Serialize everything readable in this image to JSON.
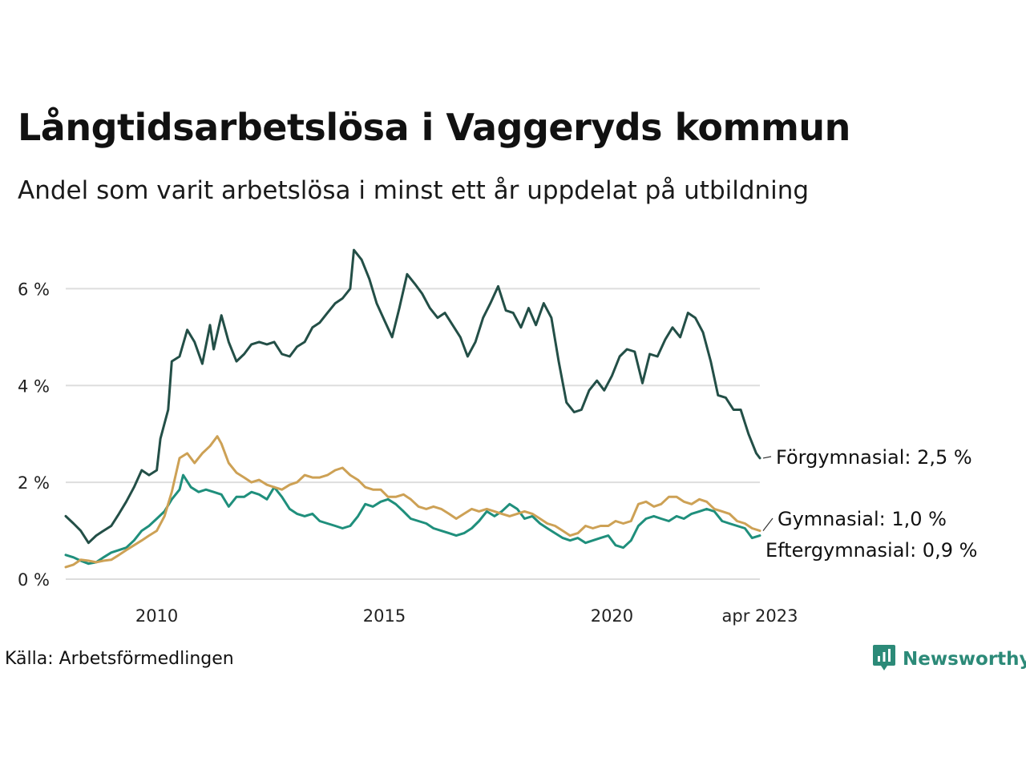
{
  "header": {
    "title": "Långtidsarbetslösa i Vaggeryds kommun",
    "subtitle": "Andel som varit arbetslösa i minst ett år uppdelat på utbildning"
  },
  "footer": {
    "source": "Källa: Arbetsförmedlingen",
    "brand": "Newsworthy"
  },
  "colors": {
    "forgymnasial": "#234f47",
    "gymnasial": "#cda155",
    "eftergymnasial": "#1f8f7c",
    "grid": "#dddddd",
    "brand": "#2c8a78"
  },
  "icons": {
    "brand_logo": "newsworthy-chart-icon"
  },
  "chart_data": {
    "type": "line",
    "x_axis": {
      "ticks": [
        2010,
        2015,
        2020
      ],
      "tick_labels": [
        "2010",
        "2015",
        "2020"
      ],
      "end_label": "apr 2023",
      "range": [
        2008.0,
        2023.25
      ]
    },
    "y_axis": {
      "ticks": [
        0,
        2,
        4,
        6
      ],
      "tick_labels": [
        "0 %",
        "2 %",
        "4 %",
        "6 %"
      ],
      "range": [
        0,
        7
      ],
      "unit": "%"
    },
    "grid": true,
    "legend": "direct-labels-right",
    "series": [
      {
        "name": "Förgymnasial",
        "end_label": "Förgymnasial: 2,5 %",
        "color": "#234f47",
        "points": [
          [
            2008.0,
            1.3
          ],
          [
            2008.17,
            1.15
          ],
          [
            2008.33,
            1.0
          ],
          [
            2008.5,
            0.75
          ],
          [
            2008.67,
            0.9
          ],
          [
            2008.83,
            1.0
          ],
          [
            2009.0,
            1.1
          ],
          [
            2009.17,
            1.35
          ],
          [
            2009.33,
            1.6
          ],
          [
            2009.5,
            1.9
          ],
          [
            2009.67,
            2.25
          ],
          [
            2009.83,
            2.15
          ],
          [
            2010.0,
            2.25
          ],
          [
            2010.08,
            2.9
          ],
          [
            2010.25,
            3.5
          ],
          [
            2010.33,
            4.5
          ],
          [
            2010.5,
            4.6
          ],
          [
            2010.67,
            5.15
          ],
          [
            2010.83,
            4.9
          ],
          [
            2011.0,
            4.45
          ],
          [
            2011.17,
            5.25
          ],
          [
            2011.25,
            4.75
          ],
          [
            2011.42,
            5.45
          ],
          [
            2011.58,
            4.9
          ],
          [
            2011.75,
            4.5
          ],
          [
            2011.92,
            4.65
          ],
          [
            2012.08,
            4.85
          ],
          [
            2012.25,
            4.9
          ],
          [
            2012.42,
            4.85
          ],
          [
            2012.58,
            4.9
          ],
          [
            2012.75,
            4.65
          ],
          [
            2012.92,
            4.6
          ],
          [
            2013.08,
            4.8
          ],
          [
            2013.25,
            4.9
          ],
          [
            2013.42,
            5.2
          ],
          [
            2013.58,
            5.3
          ],
          [
            2013.75,
            5.5
          ],
          [
            2013.92,
            5.7
          ],
          [
            2014.08,
            5.8
          ],
          [
            2014.25,
            6.0
          ],
          [
            2014.33,
            6.8
          ],
          [
            2014.5,
            6.6
          ],
          [
            2014.67,
            6.2
          ],
          [
            2014.83,
            5.7
          ],
          [
            2015.0,
            5.35
          ],
          [
            2015.17,
            5.0
          ],
          [
            2015.33,
            5.6
          ],
          [
            2015.5,
            6.3
          ],
          [
            2015.67,
            6.1
          ],
          [
            2015.83,
            5.9
          ],
          [
            2016.0,
            5.6
          ],
          [
            2016.17,
            5.4
          ],
          [
            2016.33,
            5.5
          ],
          [
            2016.5,
            5.25
          ],
          [
            2016.67,
            5.0
          ],
          [
            2016.83,
            4.6
          ],
          [
            2017.0,
            4.9
          ],
          [
            2017.17,
            5.4
          ],
          [
            2017.33,
            5.7
          ],
          [
            2017.5,
            6.05
          ],
          [
            2017.67,
            5.55
          ],
          [
            2017.83,
            5.5
          ],
          [
            2018.0,
            5.2
          ],
          [
            2018.17,
            5.6
          ],
          [
            2018.33,
            5.25
          ],
          [
            2018.5,
            5.7
          ],
          [
            2018.67,
            5.4
          ],
          [
            2018.83,
            4.5
          ],
          [
            2019.0,
            3.65
          ],
          [
            2019.17,
            3.45
          ],
          [
            2019.33,
            3.5
          ],
          [
            2019.5,
            3.9
          ],
          [
            2019.67,
            4.1
          ],
          [
            2019.83,
            3.9
          ],
          [
            2020.0,
            4.2
          ],
          [
            2020.17,
            4.6
          ],
          [
            2020.33,
            4.75
          ],
          [
            2020.5,
            4.7
          ],
          [
            2020.67,
            4.05
          ],
          [
            2020.83,
            4.65
          ],
          [
            2021.0,
            4.6
          ],
          [
            2021.17,
            4.95
          ],
          [
            2021.33,
            5.2
          ],
          [
            2021.5,
            5.0
          ],
          [
            2021.67,
            5.5
          ],
          [
            2021.83,
            5.4
          ],
          [
            2022.0,
            5.1
          ],
          [
            2022.17,
            4.5
          ],
          [
            2022.33,
            3.8
          ],
          [
            2022.5,
            3.75
          ],
          [
            2022.67,
            3.5
          ],
          [
            2022.83,
            3.5
          ],
          [
            2023.0,
            3.0
          ],
          [
            2023.17,
            2.6
          ],
          [
            2023.25,
            2.5
          ]
        ]
      },
      {
        "name": "Gymnasial",
        "end_label": "Gymnasial: 1,0 %",
        "color": "#cda155",
        "points": [
          [
            2008.0,
            0.25
          ],
          [
            2008.17,
            0.3
          ],
          [
            2008.33,
            0.4
          ],
          [
            2008.5,
            0.38
          ],
          [
            2008.67,
            0.35
          ],
          [
            2008.83,
            0.38
          ],
          [
            2009.0,
            0.4
          ],
          [
            2009.17,
            0.5
          ],
          [
            2009.33,
            0.6
          ],
          [
            2009.5,
            0.7
          ],
          [
            2009.67,
            0.8
          ],
          [
            2009.83,
            0.9
          ],
          [
            2010.0,
            1.0
          ],
          [
            2010.17,
            1.3
          ],
          [
            2010.33,
            1.8
          ],
          [
            2010.5,
            2.5
          ],
          [
            2010.67,
            2.6
          ],
          [
            2010.83,
            2.4
          ],
          [
            2011.0,
            2.6
          ],
          [
            2011.17,
            2.75
          ],
          [
            2011.33,
            2.95
          ],
          [
            2011.42,
            2.8
          ],
          [
            2011.58,
            2.4
          ],
          [
            2011.75,
            2.2
          ],
          [
            2011.92,
            2.1
          ],
          [
            2012.08,
            2.0
          ],
          [
            2012.25,
            2.05
          ],
          [
            2012.42,
            1.95
          ],
          [
            2012.58,
            1.9
          ],
          [
            2012.75,
            1.85
          ],
          [
            2012.92,
            1.95
          ],
          [
            2013.08,
            2.0
          ],
          [
            2013.25,
            2.15
          ],
          [
            2013.42,
            2.1
          ],
          [
            2013.58,
            2.1
          ],
          [
            2013.75,
            2.15
          ],
          [
            2013.92,
            2.25
          ],
          [
            2014.08,
            2.3
          ],
          [
            2014.25,
            2.15
          ],
          [
            2014.42,
            2.05
          ],
          [
            2014.58,
            1.9
          ],
          [
            2014.75,
            1.85
          ],
          [
            2014.92,
            1.85
          ],
          [
            2015.08,
            1.7
          ],
          [
            2015.25,
            1.7
          ],
          [
            2015.42,
            1.75
          ],
          [
            2015.58,
            1.65
          ],
          [
            2015.75,
            1.5
          ],
          [
            2015.92,
            1.45
          ],
          [
            2016.08,
            1.5
          ],
          [
            2016.25,
            1.45
          ],
          [
            2016.42,
            1.35
          ],
          [
            2016.58,
            1.25
          ],
          [
            2016.75,
            1.35
          ],
          [
            2016.92,
            1.45
          ],
          [
            2017.08,
            1.4
          ],
          [
            2017.25,
            1.45
          ],
          [
            2017.42,
            1.4
          ],
          [
            2017.58,
            1.35
          ],
          [
            2017.75,
            1.3
          ],
          [
            2017.92,
            1.35
          ],
          [
            2018.08,
            1.4
          ],
          [
            2018.25,
            1.35
          ],
          [
            2018.42,
            1.25
          ],
          [
            2018.58,
            1.15
          ],
          [
            2018.75,
            1.1
          ],
          [
            2018.92,
            1.0
          ],
          [
            2019.08,
            0.9
          ],
          [
            2019.25,
            0.95
          ],
          [
            2019.42,
            1.1
          ],
          [
            2019.58,
            1.05
          ],
          [
            2019.75,
            1.1
          ],
          [
            2019.92,
            1.1
          ],
          [
            2020.08,
            1.2
          ],
          [
            2020.25,
            1.15
          ],
          [
            2020.42,
            1.2
          ],
          [
            2020.58,
            1.55
          ],
          [
            2020.75,
            1.6
          ],
          [
            2020.92,
            1.5
          ],
          [
            2021.08,
            1.55
          ],
          [
            2021.25,
            1.7
          ],
          [
            2021.42,
            1.7
          ],
          [
            2021.58,
            1.6
          ],
          [
            2021.75,
            1.55
          ],
          [
            2021.92,
            1.65
          ],
          [
            2022.08,
            1.6
          ],
          [
            2022.25,
            1.45
          ],
          [
            2022.42,
            1.4
          ],
          [
            2022.58,
            1.35
          ],
          [
            2022.75,
            1.2
          ],
          [
            2022.92,
            1.15
          ],
          [
            2023.08,
            1.05
          ],
          [
            2023.25,
            1.0
          ]
        ]
      },
      {
        "name": "Eftergymnasial",
        "end_label": "Eftergymnasial: 0,9 %",
        "color": "#1f8f7c",
        "points": [
          [
            2008.0,
            0.5
          ],
          [
            2008.17,
            0.45
          ],
          [
            2008.33,
            0.38
          ],
          [
            2008.5,
            0.32
          ],
          [
            2008.67,
            0.35
          ],
          [
            2008.83,
            0.45
          ],
          [
            2009.0,
            0.55
          ],
          [
            2009.17,
            0.6
          ],
          [
            2009.33,
            0.65
          ],
          [
            2009.5,
            0.8
          ],
          [
            2009.67,
            1.0
          ],
          [
            2009.83,
            1.1
          ],
          [
            2010.0,
            1.25
          ],
          [
            2010.17,
            1.4
          ],
          [
            2010.33,
            1.65
          ],
          [
            2010.5,
            1.85
          ],
          [
            2010.58,
            2.15
          ],
          [
            2010.75,
            1.9
          ],
          [
            2010.92,
            1.8
          ],
          [
            2011.08,
            1.85
          ],
          [
            2011.25,
            1.8
          ],
          [
            2011.42,
            1.75
          ],
          [
            2011.58,
            1.5
          ],
          [
            2011.75,
            1.7
          ],
          [
            2011.92,
            1.7
          ],
          [
            2012.08,
            1.8
          ],
          [
            2012.25,
            1.75
          ],
          [
            2012.42,
            1.65
          ],
          [
            2012.58,
            1.9
          ],
          [
            2012.75,
            1.7
          ],
          [
            2012.92,
            1.45
          ],
          [
            2013.08,
            1.35
          ],
          [
            2013.25,
            1.3
          ],
          [
            2013.42,
            1.35
          ],
          [
            2013.58,
            1.2
          ],
          [
            2013.75,
            1.15
          ],
          [
            2013.92,
            1.1
          ],
          [
            2014.08,
            1.05
          ],
          [
            2014.25,
            1.1
          ],
          [
            2014.42,
            1.3
          ],
          [
            2014.58,
            1.55
          ],
          [
            2014.75,
            1.5
          ],
          [
            2014.92,
            1.6
          ],
          [
            2015.08,
            1.65
          ],
          [
            2015.25,
            1.55
          ],
          [
            2015.42,
            1.4
          ],
          [
            2015.58,
            1.25
          ],
          [
            2015.75,
            1.2
          ],
          [
            2015.92,
            1.15
          ],
          [
            2016.08,
            1.05
          ],
          [
            2016.25,
            1.0
          ],
          [
            2016.42,
            0.95
          ],
          [
            2016.58,
            0.9
          ],
          [
            2016.75,
            0.95
          ],
          [
            2016.92,
            1.05
          ],
          [
            2017.08,
            1.2
          ],
          [
            2017.25,
            1.4
          ],
          [
            2017.42,
            1.3
          ],
          [
            2017.58,
            1.4
          ],
          [
            2017.75,
            1.55
          ],
          [
            2017.92,
            1.45
          ],
          [
            2018.08,
            1.25
          ],
          [
            2018.25,
            1.3
          ],
          [
            2018.42,
            1.15
          ],
          [
            2018.58,
            1.05
          ],
          [
            2018.75,
            0.95
          ],
          [
            2018.92,
            0.85
          ],
          [
            2019.08,
            0.8
          ],
          [
            2019.25,
            0.85
          ],
          [
            2019.42,
            0.75
          ],
          [
            2019.58,
            0.8
          ],
          [
            2019.75,
            0.85
          ],
          [
            2019.92,
            0.9
          ],
          [
            2020.08,
            0.7
          ],
          [
            2020.25,
            0.65
          ],
          [
            2020.42,
            0.8
          ],
          [
            2020.58,
            1.1
          ],
          [
            2020.75,
            1.25
          ],
          [
            2020.92,
            1.3
          ],
          [
            2021.08,
            1.25
          ],
          [
            2021.25,
            1.2
          ],
          [
            2021.42,
            1.3
          ],
          [
            2021.58,
            1.25
          ],
          [
            2021.75,
            1.35
          ],
          [
            2021.92,
            1.4
          ],
          [
            2022.08,
            1.45
          ],
          [
            2022.25,
            1.4
          ],
          [
            2022.42,
            1.2
          ],
          [
            2022.58,
            1.15
          ],
          [
            2022.75,
            1.1
          ],
          [
            2022.92,
            1.05
          ],
          [
            2023.08,
            0.85
          ],
          [
            2023.25,
            0.9
          ]
        ]
      }
    ]
  }
}
